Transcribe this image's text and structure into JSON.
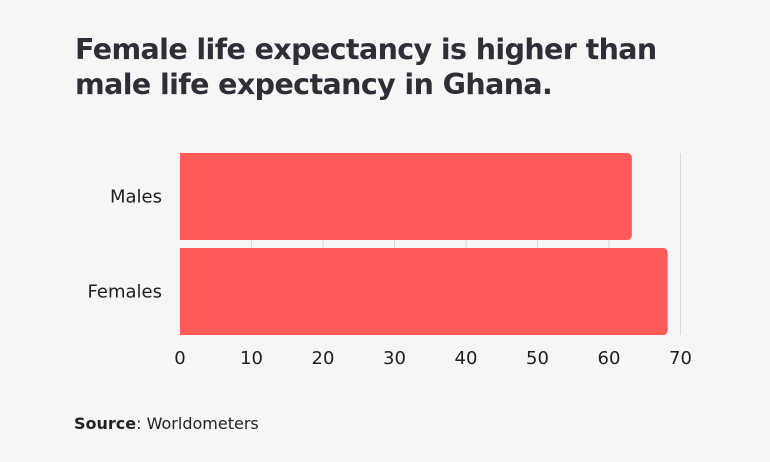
{
  "chart_data": {
    "type": "bar",
    "orientation": "horizontal",
    "title": "Female life expectancy is higher than male life expectancy in Ghana.",
    "categories": [
      "Males",
      "Females"
    ],
    "values": [
      63.2,
      68.2
    ],
    "xlabel": "",
    "ylabel": "",
    "xlim": [
      0,
      70
    ],
    "xticks": [
      "0",
      "10",
      "20",
      "30",
      "40",
      "50",
      "60",
      "70"
    ],
    "grid": true,
    "bar_color": "#ff5a5a"
  },
  "source": {
    "label": "Source",
    "separator": ": ",
    "value": "Worldometers"
  }
}
